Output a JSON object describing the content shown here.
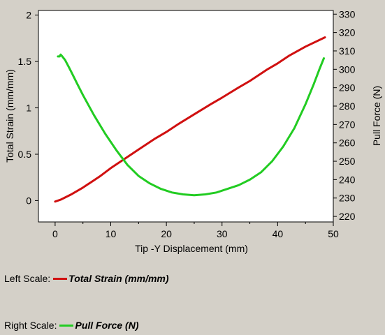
{
  "chart_data": {
    "type": "line",
    "xlabel": "Tip -Y Displacement (mm)",
    "ylabel_left": "Total Strain (mm/mm)",
    "ylabel_right": "Pull Force (N)",
    "xlim": [
      -3,
      50
    ],
    "ylim_left": [
      -0.23,
      2.05
    ],
    "ylim_right": [
      217,
      332
    ],
    "xticks": [
      0,
      10,
      20,
      30,
      40,
      50
    ],
    "yticks_left": [
      0,
      0.5,
      1,
      1.5,
      2
    ],
    "yticks_right": [
      220,
      230,
      240,
      250,
      260,
      270,
      280,
      290,
      300,
      310,
      320,
      330
    ],
    "xtick_labels": [
      "0",
      "10",
      "20",
      "30",
      "40",
      "50"
    ],
    "ytick_labels_left": [
      "0",
      "0.5",
      "1",
      "1.5",
      "2"
    ],
    "ytick_labels_right": [
      "220",
      "230",
      "240",
      "250",
      "260",
      "270",
      "280",
      "290",
      "300",
      "310",
      "320",
      "330"
    ],
    "grid": false,
    "series": [
      {
        "name": "Total Strain (mm/mm)",
        "axis": "left",
        "color": "#d01010",
        "x": [
          0,
          1,
          2,
          3,
          5,
          8,
          10,
          12,
          15,
          18,
          20,
          22,
          25,
          28,
          30,
          33,
          35,
          38,
          40,
          42,
          45,
          48.5
        ],
        "y": [
          -0.01,
          0.01,
          0.04,
          0.07,
          0.14,
          0.26,
          0.35,
          0.43,
          0.55,
          0.67,
          0.74,
          0.82,
          0.93,
          1.04,
          1.11,
          1.22,
          1.29,
          1.41,
          1.48,
          1.56,
          1.66,
          1.76
        ]
      },
      {
        "name": "Pull Force (N)",
        "axis": "right",
        "color": "#22cc22",
        "x": [
          0.5,
          0.8,
          1,
          1.3,
          1.8,
          2.5,
          3,
          4,
          5,
          7,
          9,
          11,
          13,
          15,
          17,
          19,
          21,
          23,
          25,
          27,
          29,
          31,
          33,
          35,
          37,
          39,
          41,
          43,
          45,
          46.5,
          47.5,
          48.3
        ],
        "y": [
          307,
          307,
          308,
          307,
          305,
          301,
          298,
          292,
          286,
          275,
          265,
          256,
          248,
          242,
          238,
          235,
          233,
          232,
          231.5,
          232,
          233,
          235,
          237,
          240,
          244,
          250,
          258,
          268,
          281,
          292,
          300,
          306
        ]
      }
    ]
  },
  "legend": {
    "left_prefix": "Left Scale:",
    "left_name": "Total Strain (mm/mm)",
    "left_color": "#d01010",
    "right_prefix": "Right Scale:",
    "right_name": "Pull Force (N)",
    "right_color": "#22cc22"
  }
}
